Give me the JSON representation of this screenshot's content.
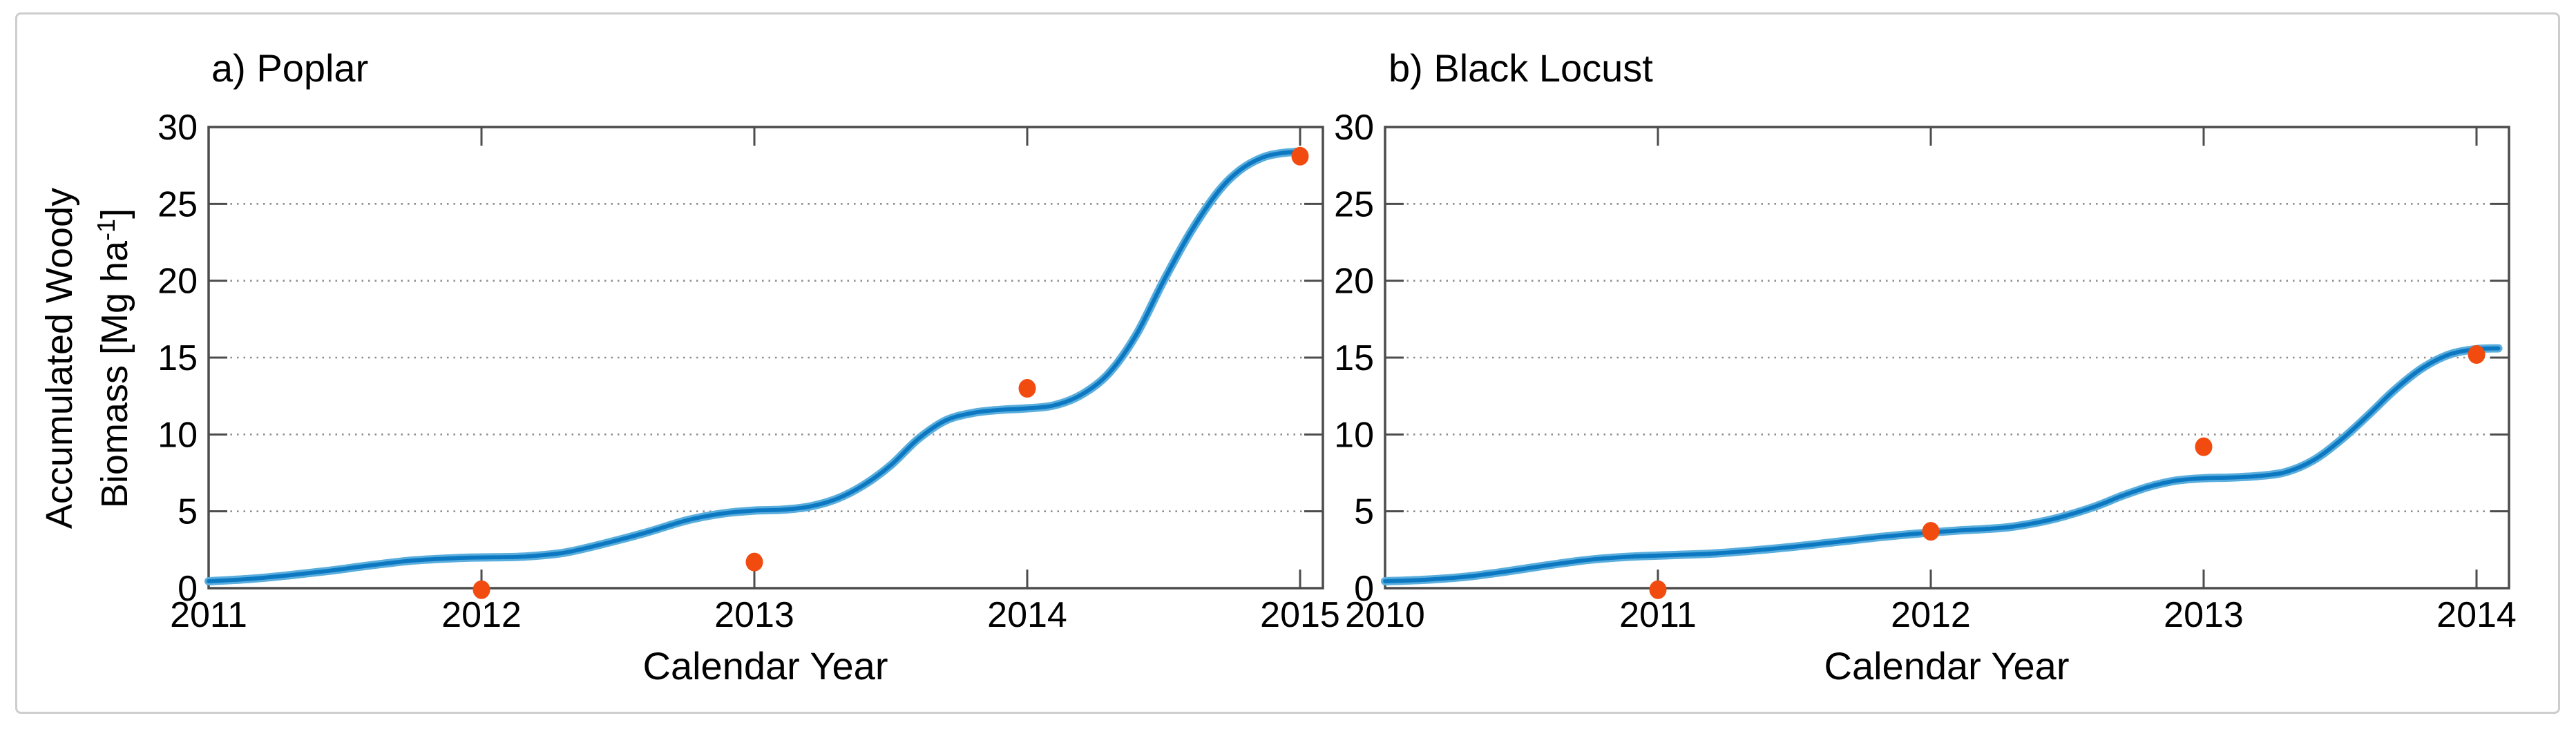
{
  "figure": {
    "background": "#ffffff",
    "border_color": "#cdcdcd"
  },
  "ylabel": {
    "line1": "Accumulated Woody",
    "line2_pre": "Biomass [Mg ha",
    "line2_sup": "-1",
    "line2_post": "]"
  },
  "colors": {
    "curve": "#0d78c2",
    "curve_edge": "#5aaedd",
    "marker": "#f14b10",
    "axis": "#4c4c4c",
    "grid": "#8c8c8c",
    "text": "#000000"
  },
  "chart_data": [
    {
      "type": "line",
      "title": "a) Poplar",
      "xlabel": "Calendar Year",
      "ylabel": "Accumulated Woody Biomass [Mg ha-1]",
      "xlim": [
        2011,
        2015.08
      ],
      "ylim": [
        0,
        30
      ],
      "x_ticks": [
        2011,
        2012,
        2013,
        2014,
        2015
      ],
      "y_ticks": [
        0,
        5,
        10,
        15,
        20,
        25,
        30
      ],
      "grid_y": [
        5,
        10,
        15,
        20,
        25
      ],
      "grid_style": "dotted",
      "legend": "none",
      "series": [
        {
          "name": "model",
          "type": "line",
          "color": "#0d78c2",
          "points": [
            [
              2011.0,
              0.45
            ],
            [
              2011.15,
              0.6
            ],
            [
              2011.3,
              0.85
            ],
            [
              2011.45,
              1.15
            ],
            [
              2011.6,
              1.5
            ],
            [
              2011.75,
              1.8
            ],
            [
              2011.9,
              1.95
            ],
            [
              2012.0,
              2.0
            ],
            [
              2012.15,
              2.05
            ],
            [
              2012.3,
              2.3
            ],
            [
              2012.45,
              2.9
            ],
            [
              2012.6,
              3.6
            ],
            [
              2012.75,
              4.4
            ],
            [
              2012.88,
              4.85
            ],
            [
              2013.0,
              5.05
            ],
            [
              2013.1,
              5.1
            ],
            [
              2013.2,
              5.3
            ],
            [
              2013.3,
              5.8
            ],
            [
              2013.4,
              6.7
            ],
            [
              2013.5,
              8.0
            ],
            [
              2013.6,
              9.7
            ],
            [
              2013.7,
              10.9
            ],
            [
              2013.8,
              11.4
            ],
            [
              2013.9,
              11.6
            ],
            [
              2014.0,
              11.7
            ],
            [
              2014.1,
              11.9
            ],
            [
              2014.2,
              12.6
            ],
            [
              2014.3,
              14.0
            ],
            [
              2014.4,
              16.5
            ],
            [
              2014.5,
              20.0
            ],
            [
              2014.6,
              23.2
            ],
            [
              2014.7,
              25.8
            ],
            [
              2014.78,
              27.2
            ],
            [
              2014.86,
              28.0
            ],
            [
              2014.93,
              28.3
            ],
            [
              2015.0,
              28.4
            ]
          ]
        },
        {
          "name": "observations",
          "type": "scatter",
          "color": "#f14b10",
          "points": [
            [
              2012,
              -0.1
            ],
            [
              2013,
              1.7
            ],
            [
              2014,
              13.0
            ],
            [
              2015,
              28.1
            ]
          ]
        }
      ]
    },
    {
      "type": "line",
      "title": "b) Black Locust",
      "xlabel": "Calendar Year",
      "ylabel": "Accumulated Woody Biomass [Mg ha-1]",
      "xlim": [
        2010,
        2014.12
      ],
      "ylim": [
        0,
        30
      ],
      "x_ticks": [
        2010,
        2011,
        2012,
        2013,
        2014
      ],
      "y_ticks": [
        0,
        5,
        10,
        15,
        20,
        25,
        30
      ],
      "grid_y": [
        5,
        10,
        15,
        20,
        25
      ],
      "grid_style": "dotted",
      "legend": "none",
      "series": [
        {
          "name": "model",
          "type": "line",
          "color": "#0d78c2",
          "points": [
            [
              2010.0,
              0.45
            ],
            [
              2010.15,
              0.55
            ],
            [
              2010.3,
              0.75
            ],
            [
              2010.45,
              1.1
            ],
            [
              2010.6,
              1.5
            ],
            [
              2010.75,
              1.85
            ],
            [
              2010.9,
              2.05
            ],
            [
              2011.05,
              2.15
            ],
            [
              2011.2,
              2.25
            ],
            [
              2011.35,
              2.45
            ],
            [
              2011.5,
              2.7
            ],
            [
              2011.65,
              3.0
            ],
            [
              2011.8,
              3.3
            ],
            [
              2011.95,
              3.55
            ],
            [
              2012.1,
              3.75
            ],
            [
              2012.2,
              3.85
            ],
            [
              2012.3,
              4.0
            ],
            [
              2012.45,
              4.5
            ],
            [
              2012.6,
              5.3
            ],
            [
              2012.7,
              6.0
            ],
            [
              2012.8,
              6.6
            ],
            [
              2012.9,
              7.0
            ],
            [
              2013.0,
              7.15
            ],
            [
              2013.1,
              7.2
            ],
            [
              2013.2,
              7.3
            ],
            [
              2013.3,
              7.55
            ],
            [
              2013.4,
              8.3
            ],
            [
              2013.5,
              9.6
            ],
            [
              2013.6,
              11.2
            ],
            [
              2013.7,
              12.9
            ],
            [
              2013.8,
              14.3
            ],
            [
              2013.9,
              15.2
            ],
            [
              2014.0,
              15.55
            ],
            [
              2014.08,
              15.6
            ]
          ]
        },
        {
          "name": "observations",
          "type": "scatter",
          "color": "#f14b10",
          "points": [
            [
              2011,
              -0.1
            ],
            [
              2012,
              3.7
            ],
            [
              2013,
              9.2
            ],
            [
              2014,
              15.2
            ]
          ]
        }
      ]
    }
  ]
}
